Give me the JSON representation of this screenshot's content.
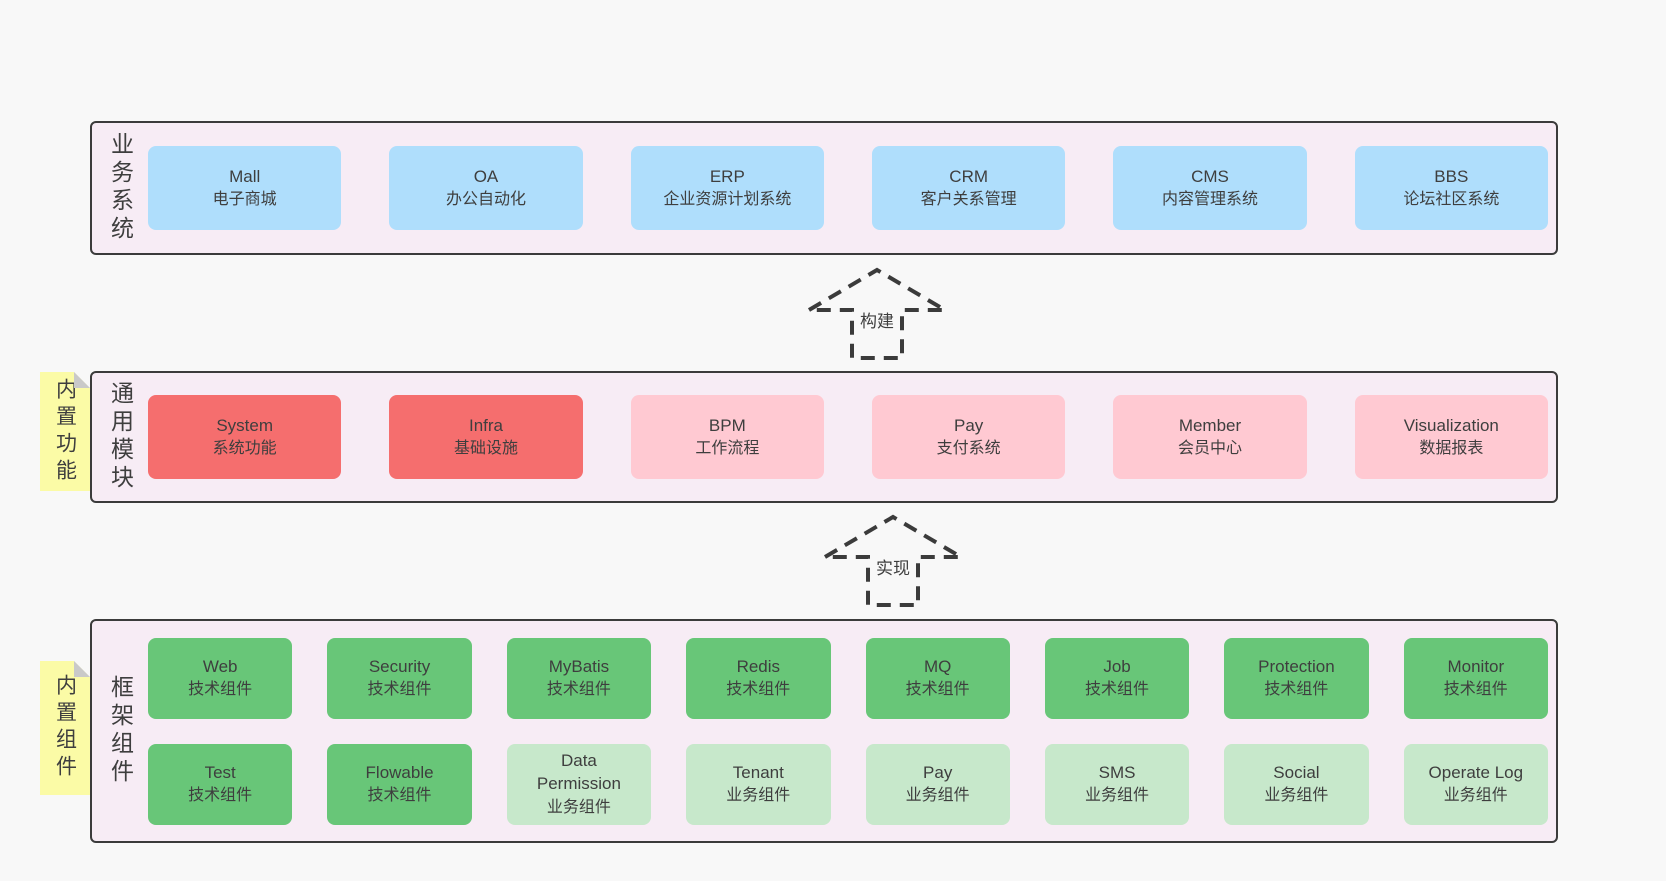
{
  "colors": {
    "page_bg": "#f8f8f8",
    "panel_bg": "#f7ecf5",
    "panel_border": "#3b3b3b",
    "text": "#3e3e3e",
    "blue": "#afdefc",
    "red": "#f56e6e",
    "pink": "#ffc9d2",
    "green": "#68c678",
    "light_green": "#c7e8cb",
    "sticky_yellow": "#fbfba6",
    "sticky_fold": "#c9c9c9"
  },
  "arrows": [
    {
      "label": "构建"
    },
    {
      "label": "实现"
    }
  ],
  "sections": [
    {
      "label": "业务系统",
      "sticky": null,
      "rows": [
        [
          {
            "title": "Mall",
            "subtitle": "电子商城",
            "variant": "blue"
          },
          {
            "title": "OA",
            "subtitle": "办公自动化",
            "variant": "blue"
          },
          {
            "title": "ERP",
            "subtitle": "企业资源计划系统",
            "variant": "blue"
          },
          {
            "title": "CRM",
            "subtitle": "客户关系管理",
            "variant": "blue"
          },
          {
            "title": "CMS",
            "subtitle": "内容管理系统",
            "variant": "blue"
          },
          {
            "title": "BBS",
            "subtitle": "论坛社区系统",
            "variant": "blue"
          }
        ]
      ]
    },
    {
      "label": "通用模块",
      "sticky": "内置功能",
      "rows": [
        [
          {
            "title": "System",
            "subtitle": "系统功能",
            "variant": "red"
          },
          {
            "title": "Infra",
            "subtitle": "基础设施",
            "variant": "red"
          },
          {
            "title": "BPM",
            "subtitle": "工作流程",
            "variant": "pink"
          },
          {
            "title": "Pay",
            "subtitle": "支付系统",
            "variant": "pink"
          },
          {
            "title": "Member",
            "subtitle": "会员中心",
            "variant": "pink"
          },
          {
            "title": "Visualization",
            "subtitle": "数据报表",
            "variant": "pink"
          }
        ]
      ]
    },
    {
      "label": "框架组件",
      "sticky": "内置组件",
      "rows": [
        [
          {
            "title": "Web",
            "subtitle": "技术组件",
            "variant": "green"
          },
          {
            "title": "Security",
            "subtitle": "技术组件",
            "variant": "green"
          },
          {
            "title": "MyBatis",
            "subtitle": "技术组件",
            "variant": "green"
          },
          {
            "title": "Redis",
            "subtitle": "技术组件",
            "variant": "green"
          },
          {
            "title": "MQ",
            "subtitle": "技术组件",
            "variant": "green"
          },
          {
            "title": "Job",
            "subtitle": "技术组件",
            "variant": "green"
          },
          {
            "title": "Protection",
            "subtitle": "技术组件",
            "variant": "green"
          },
          {
            "title": "Monitor",
            "subtitle": "技术组件",
            "variant": "green"
          }
        ],
        [
          {
            "title": "Test",
            "subtitle": "技术组件",
            "variant": "green"
          },
          {
            "title": "Flowable",
            "subtitle": "技术组件",
            "variant": "green"
          },
          {
            "title": "Data Permission",
            "subtitle": "业务组件",
            "variant": "light_green"
          },
          {
            "title": "Tenant",
            "subtitle": "业务组件",
            "variant": "light_green"
          },
          {
            "title": "Pay",
            "subtitle": "业务组件",
            "variant": "light_green"
          },
          {
            "title": "SMS",
            "subtitle": "业务组件",
            "variant": "light_green"
          },
          {
            "title": "Social",
            "subtitle": "业务组件",
            "variant": "light_green"
          },
          {
            "title": "Operate Log",
            "subtitle": "业务组件",
            "variant": "light_green"
          }
        ]
      ]
    }
  ]
}
